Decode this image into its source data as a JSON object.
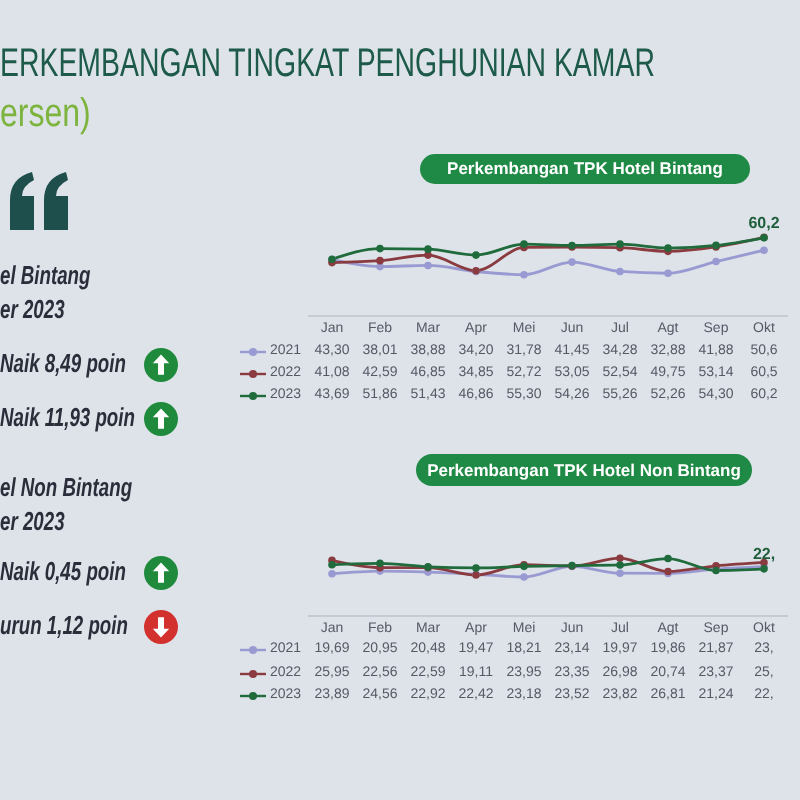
{
  "chart_data": [
    {
      "type": "other",
      "title": "ERKEMBANGAN TINGKAT PENGHUNIAN KAMAR",
      "subtitle": "ersen)",
      "annotations": [
        "el Bintang",
        "er 2023",
        "Naik 8,49 poin",
        "Naik 11,93 poin",
        "el Non Bintang",
        "er 2023",
        "Naik 0,45 poin",
        "urun 1,12 poin"
      ]
    },
    {
      "type": "line",
      "title": "Perkembangan TPK Hotel Bintang",
      "categories": [
        "Jan",
        "Feb",
        "Mar",
        "Apr",
        "Mei",
        "Jun",
        "Jul",
        "Agt",
        "Sep",
        "Okt"
      ],
      "series": [
        {
          "name": "2021",
          "color": "#9a9ad2",
          "values": [
            43.3,
            38.01,
            38.88,
            34.2,
            31.78,
            41.45,
            34.28,
            32.88,
            41.88,
            50.6
          ],
          "value_labels": [
            "43,30",
            "38,01",
            "38,88",
            "34,20",
            "31,78",
            "41,45",
            "34,28",
            "32,88",
            "41,88",
            "50,6"
          ]
        },
        {
          "name": "2022",
          "color": "#8a3b3f",
          "values": [
            41.08,
            42.59,
            46.85,
            34.85,
            52.72,
            53.05,
            52.54,
            49.75,
            53.14,
            60.5
          ],
          "value_labels": [
            "41,08",
            "42,59",
            "46,85",
            "34,85",
            "52,72",
            "53,05",
            "52,54",
            "49,75",
            "53,14",
            "60,5"
          ]
        },
        {
          "name": "2023",
          "color": "#1f6b3c",
          "values": [
            43.69,
            51.86,
            51.43,
            46.86,
            55.3,
            54.26,
            55.26,
            52.26,
            54.3,
            60.2
          ],
          "value_labels": [
            "43,69",
            "51,86",
            "51,43",
            "46,86",
            "55,30",
            "54,26",
            "55,26",
            "52,26",
            "54,30",
            "60,2"
          ]
        }
      ],
      "marker": "circle",
      "legend": "bottom",
      "tick_labels": "x",
      "annotations": [
        {
          "text": "60,2",
          "x": "Okt",
          "y": 60.2
        }
      ]
    },
    {
      "type": "line",
      "title": "Perkembangan TPK Hotel Non Bintang",
      "categories": [
        "Jan",
        "Feb",
        "Mar",
        "Apr",
        "Mei",
        "Jun",
        "Jul",
        "Agt",
        "Sep",
        "Okt"
      ],
      "series": [
        {
          "name": "2021",
          "color": "#9a9ad2",
          "values": [
            19.69,
            20.95,
            20.48,
            19.47,
            18.21,
            23.14,
            19.97,
            19.86,
            21.87,
            23
          ],
          "value_labels": [
            "19,69",
            "20,95",
            "20,48",
            "19,47",
            "18,21",
            "23,14",
            "19,97",
            "19,86",
            "21,87",
            "23,"
          ]
        },
        {
          "name": "2022",
          "color": "#8a3b3f",
          "values": [
            25.95,
            22.56,
            22.59,
            19.11,
            23.95,
            23.35,
            26.98,
            20.74,
            23.37,
            25
          ],
          "value_labels": [
            "25,95",
            "22,56",
            "22,59",
            "19,11",
            "23,95",
            "23,35",
            "26,98",
            "20,74",
            "23,37",
            "25,"
          ]
        },
        {
          "name": "2023",
          "color": "#1f6b3c",
          "values": [
            23.89,
            24.56,
            22.92,
            22.42,
            23.18,
            23.52,
            23.82,
            26.81,
            21.24,
            22
          ],
          "value_labels": [
            "23,89",
            "24,56",
            "22,92",
            "22,42",
            "23,18",
            "23,52",
            "23,82",
            "26,81",
            "21,24",
            "22,"
          ]
        }
      ],
      "marker": "circle",
      "legend": "bottom",
      "tick_labels": "x",
      "annotations": [
        {
          "text": "22,",
          "x": "Okt",
          "y": 22
        }
      ]
    }
  ]
}
